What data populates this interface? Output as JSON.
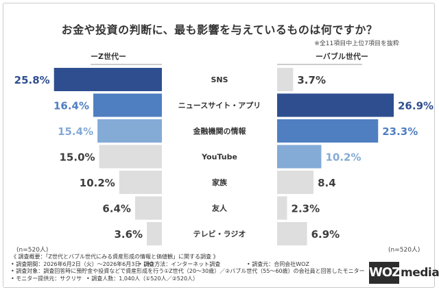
{
  "title": "お金や投資の判断に、最も影響を与えているものは何ですか？",
  "note": "※全11項目中上位7項目を抜粋",
  "colors": {
    "dark": "#2e4e8f",
    "mid": "#4f7fc1",
    "light": "#84aad6",
    "gray": "#dedede",
    "text": "#3d3d3d"
  },
  "chart_data": {
    "type": "bar",
    "orientation": "horizontal-butterfly",
    "categories": [
      "SNS",
      "ニュースサイト・アプリ",
      "金融機関の情報",
      "YouTube",
      "家族",
      "友人",
      "テレビ・ラジオ"
    ],
    "series": [
      {
        "name": "ーZ世代ー",
        "values": [
          25.8,
          16.4,
          15.4,
          15.0,
          10.2,
          6.4,
          3.6
        ],
        "labels": [
          "25.8%",
          "16.4%",
          "15.4%",
          "15.0%",
          "10.2%",
          "6.4%",
          "3.6%"
        ],
        "fill": [
          "dark",
          "mid",
          "light",
          "gray",
          "gray",
          "gray",
          "gray"
        ],
        "n": "(n=520人)"
      },
      {
        "name": "ーバブル世代ー",
        "values": [
          3.7,
          26.9,
          23.3,
          10.2,
          8.4,
          2.3,
          6.9
        ],
        "labels": [
          "3.7%",
          "26.9%",
          "23.3%",
          "10.2%",
          "8.4",
          "2.3%",
          "6.9%"
        ],
        "fill": [
          "gray",
          "dark",
          "mid",
          "light",
          "gray",
          "gray",
          "gray"
        ],
        "n": "(n=520人)"
      }
    ],
    "xlim": [
      0,
      26.9
    ]
  },
  "footer": {
    "line1": "《 調査概要：「Z世代とバブル世代にみる資産形成の情報と価値観」に関する調査 》",
    "line2a": "• 調査期間：2026年6月2日（火）〜2026年6月3日（水）",
    "line2b": "• 調査方法：インターネット調査",
    "line2c": "• 調査元：合同会社WOZ",
    "line3": "• 調査対象：調査回答時に預貯金や投資などで資産形成を行う①Z世代（20〜30歳）／②バブル世代（55〜60歳）の会社員と回答したモニター",
    "line4a": "• モニター提供元：サクリサ",
    "line4b": "• 調査人数：1,040人（①520人／②520人）"
  },
  "logo": {
    "woz": "WOZ",
    "media": "media"
  }
}
